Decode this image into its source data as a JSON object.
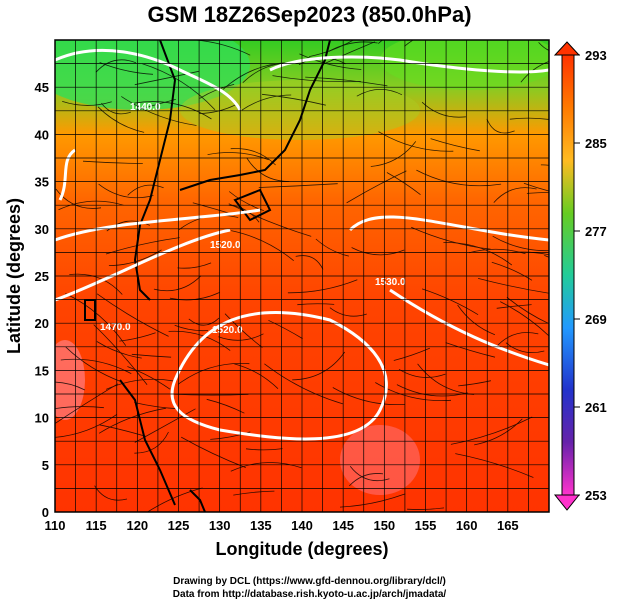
{
  "title": "GSM 18Z26Sep2023 (850.0hPa)",
  "x_axis": {
    "label": "Longitude (degrees)",
    "ticks": [
      "110",
      "115",
      "120",
      "125",
      "130",
      "135",
      "140",
      "145",
      "150",
      "155",
      "160",
      "165"
    ]
  },
  "y_axis": {
    "label": "Latitude (degrees)",
    "ticks": [
      "0",
      "5",
      "10",
      "15",
      "20",
      "25",
      "30",
      "35",
      "40",
      "45"
    ]
  },
  "colorbar": {
    "ticks": [
      "293",
      "285",
      "277",
      "269",
      "261",
      "253"
    ],
    "colors": [
      "#ff4400",
      "#ff8800",
      "#ffcc22",
      "#44cc22",
      "#22cccc",
      "#2244ff",
      "#1a1aa0",
      "#ff33cc"
    ]
  },
  "contours": [
    {
      "label": "1440.0"
    },
    {
      "label": "1470.0"
    },
    {
      "label": "1520.0"
    },
    {
      "label": "1520.0"
    },
    {
      "label": "1530.0"
    }
  ],
  "credits": [
    "Drawing by DCL (https://www.gfd-dennou.org/library/dcl/)",
    "Data from http://database.rish.kyoto-u.ac.jp/arch/jmadata/"
  ],
  "chart_data": {
    "type": "heatmap",
    "title": "GSM 18Z26Sep2023 (850.0hPa)",
    "xlabel": "Longitude (degrees)",
    "ylabel": "Latitude (degrees)",
    "xlim": [
      110,
      170
    ],
    "ylim": [
      0,
      50
    ],
    "colorbar_range": [
      253,
      293
    ],
    "contour_labels": [
      "1440.0",
      "1470.0",
      "1520.0",
      "1520.0",
      "1530.0"
    ]
  }
}
